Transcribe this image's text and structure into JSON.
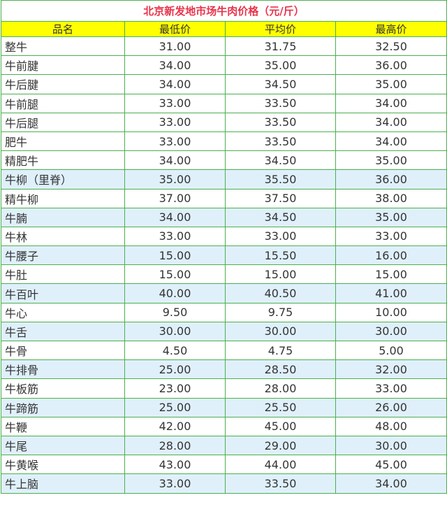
{
  "title": "北京新发地市场牛肉价格（元/斤）",
  "columns": [
    "品名",
    "最低价",
    "平均价",
    "最高价"
  ],
  "colors": {
    "border": "#4caf50",
    "title": "#e8334a",
    "header_bg": "#ffff00",
    "alt_row_bg": "#dff0fb"
  },
  "rows": [
    {
      "name": "整牛",
      "min": "31.00",
      "avg": "31.75",
      "max": "32.50",
      "alt": false
    },
    {
      "name": "牛前腱",
      "min": "34.00",
      "avg": "35.00",
      "max": "36.00",
      "alt": false
    },
    {
      "name": "牛后腱",
      "min": "34.00",
      "avg": "34.50",
      "max": "35.00",
      "alt": false
    },
    {
      "name": "牛前腿",
      "min": "33.00",
      "avg": "33.50",
      "max": "34.00",
      "alt": false
    },
    {
      "name": "牛后腿",
      "min": "33.00",
      "avg": "33.50",
      "max": "34.00",
      "alt": false
    },
    {
      "name": "肥牛",
      "min": "33.00",
      "avg": "33.50",
      "max": "34.00",
      "alt": false
    },
    {
      "name": "精肥牛",
      "min": "34.00",
      "avg": "34.50",
      "max": "35.00",
      "alt": false
    },
    {
      "name": "牛柳（里脊）",
      "min": "35.00",
      "avg": "35.50",
      "max": "36.00",
      "alt": true
    },
    {
      "name": "精牛柳",
      "min": "37.00",
      "avg": "37.50",
      "max": "38.00",
      "alt": false
    },
    {
      "name": "牛腩",
      "min": "34.00",
      "avg": "34.50",
      "max": "35.00",
      "alt": true
    },
    {
      "name": "牛林",
      "min": "33.00",
      "avg": "33.00",
      "max": "33.00",
      "alt": false
    },
    {
      "name": "牛腰子",
      "min": "15.00",
      "avg": "15.50",
      "max": "16.00",
      "alt": true
    },
    {
      "name": "牛肚",
      "min": "15.00",
      "avg": "15.00",
      "max": "15.00",
      "alt": false
    },
    {
      "name": "牛百叶",
      "min": "40.00",
      "avg": "40.50",
      "max": "41.00",
      "alt": true
    },
    {
      "name": "牛心",
      "min": "9.50",
      "avg": "9.75",
      "max": "10.00",
      "alt": false
    },
    {
      "name": "牛舌",
      "min": "30.00",
      "avg": "30.00",
      "max": "30.00",
      "alt": true
    },
    {
      "name": "牛骨",
      "min": "4.50",
      "avg": "4.75",
      "max": "5.00",
      "alt": false
    },
    {
      "name": "牛排骨",
      "min": "25.00",
      "avg": "28.50",
      "max": "32.00",
      "alt": true
    },
    {
      "name": "牛板筋",
      "min": "23.00",
      "avg": "28.00",
      "max": "33.00",
      "alt": false
    },
    {
      "name": "牛蹄筋",
      "min": "25.00",
      "avg": "25.50",
      "max": "26.00",
      "alt": true
    },
    {
      "name": "牛鞭",
      "min": "42.00",
      "avg": "45.00",
      "max": "48.00",
      "alt": false
    },
    {
      "name": "牛尾",
      "min": "28.00",
      "avg": "29.00",
      "max": "30.00",
      "alt": true
    },
    {
      "name": "牛黄喉",
      "min": "43.00",
      "avg": "44.00",
      "max": "45.00",
      "alt": false
    },
    {
      "name": "牛上脑",
      "min": "33.00",
      "avg": "33.50",
      "max": "34.00",
      "alt": true
    }
  ]
}
